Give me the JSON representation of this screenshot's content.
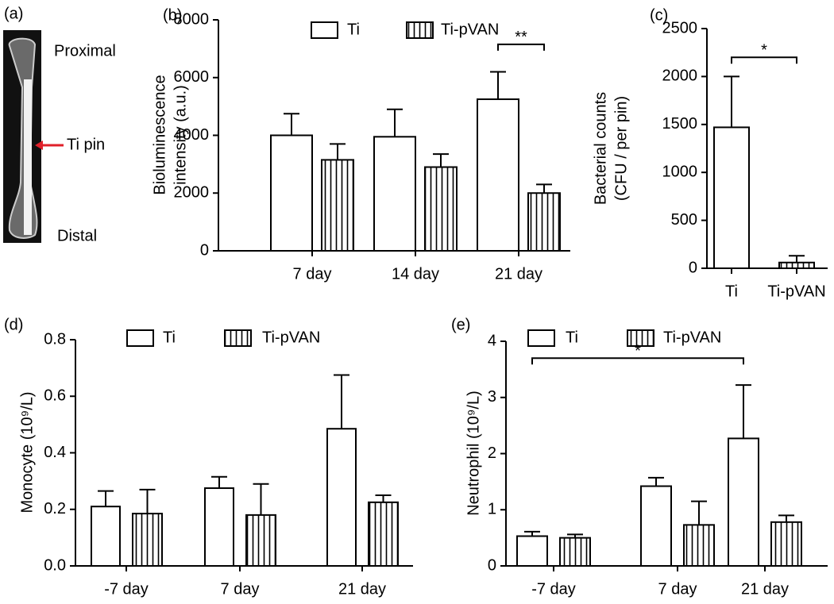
{
  "chart_data": [
    {
      "type": "image",
      "panel_label": "(a)",
      "annotations": [
        "Proximal",
        "Ti pin",
        "Distal"
      ]
    },
    {
      "type": "bar",
      "panel_label": "(b)",
      "ylabel": [
        "Bioluminescence",
        "intensity (a.u.)"
      ],
      "categories": [
        "7 day",
        "14 day",
        "21 day"
      ],
      "series": [
        {
          "name": "Ti",
          "pattern": "open",
          "color": "#000000",
          "values": [
            4000,
            3950,
            5250
          ],
          "errors": [
            750,
            950,
            950
          ]
        },
        {
          "name": "Ti-pVAN",
          "pattern": "striped",
          "color": "#000000",
          "values": [
            3150,
            2900,
            2000
          ],
          "errors": [
            550,
            450,
            300
          ]
        }
      ],
      "ylim": [
        0,
        8000
      ],
      "yticks": [
        0,
        2000,
        4000,
        6000,
        8000
      ],
      "annotations": [
        {
          "text": "**",
          "value": 7150
        }
      ]
    },
    {
      "type": "bar",
      "panel_label": "(c)",
      "ylabel": [
        "Bacterial counts",
        "(CFU / per pin)"
      ],
      "categories": [
        "Ti",
        "Ti-pVAN"
      ],
      "values": [
        1470,
        60
      ],
      "errors": [
        530,
        70
      ],
      "patterns": [
        "open",
        "striped"
      ],
      "color": "#000000",
      "ylim": [
        0,
        2500
      ],
      "yticks": [
        0,
        500,
        1000,
        1500,
        2000,
        2500
      ],
      "annotations": [
        {
          "text": "*",
          "value": 2200
        }
      ]
    },
    {
      "type": "bar",
      "panel_label": "(d)",
      "ylabel": [
        "Monocyte (10⁹/L)"
      ],
      "categories": [
        "-7 day",
        "7 day",
        "21 day"
      ],
      "series": [
        {
          "name": "Ti",
          "pattern": "open",
          "color": "#000000",
          "values": [
            0.21,
            0.275,
            0.485
          ],
          "errors": [
            0.055,
            0.04,
            0.19
          ]
        },
        {
          "name": "Ti-pVAN",
          "pattern": "striped",
          "color": "#000000",
          "values": [
            0.185,
            0.18,
            0.225
          ],
          "errors": [
            0.085,
            0.11,
            0.025
          ]
        }
      ],
      "ylim": [
        0,
        0.8
      ],
      "yticks": [
        {
          "value": 0,
          "label": "0.0"
        },
        0.2,
        0.4,
        0.6,
        0.8
      ]
    },
    {
      "type": "bar",
      "panel_label": "(e)",
      "ylabel": [
        "Neutrophil (10⁹/L)"
      ],
      "categories": [
        "-7 day",
        "7 day",
        "21 day"
      ],
      "series": [
        {
          "name": "Ti",
          "pattern": "open",
          "color": "#000000",
          "values": [
            0.53,
            1.42,
            2.27
          ],
          "errors": [
            0.08,
            0.15,
            0.95
          ]
        },
        {
          "name": "Ti-pVAN",
          "pattern": "striped",
          "color": "#000000",
          "values": [
            0.5,
            0.73,
            0.78
          ],
          "errors": [
            0.06,
            0.42,
            0.12
          ]
        }
      ],
      "ylim": [
        0,
        4
      ],
      "yticks": [
        0,
        1,
        2,
        3,
        4
      ],
      "annotations": [
        {
          "text": "*",
          "value": 3.7
        }
      ]
    }
  ]
}
